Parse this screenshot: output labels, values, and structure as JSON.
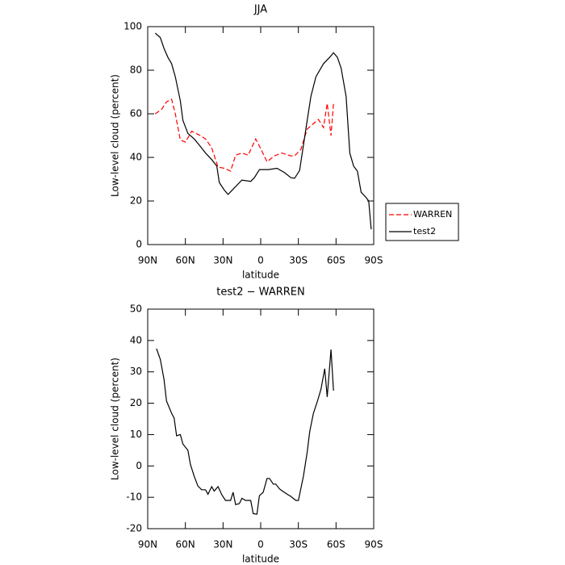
{
  "chart_data": [
    {
      "type": "line",
      "title": "JJA",
      "xlabel": "latitude",
      "ylabel": "Low-level cloud (percent)",
      "xlim": [
        90,
        -90
      ],
      "ylim": [
        0,
        100
      ],
      "xticks": [
        {
          "value": 90,
          "label": "90N"
        },
        {
          "value": 60,
          "label": "60N"
        },
        {
          "value": 30,
          "label": "30N"
        },
        0,
        {
          "value": -30,
          "label": "30S"
        },
        {
          "value": -60,
          "label": "60S"
        },
        {
          "value": -90,
          "label": "90S"
        }
      ],
      "yticks": [
        0,
        20,
        40,
        60,
        80,
        100
      ],
      "legend": "right",
      "series": [
        {
          "name": "WARREN",
          "color": "#ff0000",
          "dash": true,
          "x": [
            84,
            79,
            75,
            71,
            68,
            64,
            60,
            55,
            48,
            44,
            39,
            34,
            29,
            24,
            20,
            15,
            10,
            4,
            0,
            -5,
            -11,
            -17,
            -24,
            -27,
            -32,
            -37,
            -41,
            -46,
            -50,
            -53,
            -56,
            -58
          ],
          "values": [
            60,
            62,
            65.5,
            66.7,
            60,
            48,
            47,
            52,
            50,
            48.5,
            44.4,
            35.6,
            35,
            33.7,
            41,
            42,
            41,
            48.5,
            44,
            38,
            40.7,
            42,
            40.7,
            40.7,
            43.7,
            53,
            55,
            57.4,
            53.7,
            64.8,
            50,
            64.8
          ]
        },
        {
          "name": "test2",
          "color": "#000000",
          "dash": false,
          "x": [
            84,
            80,
            77,
            74,
            71,
            68,
            64,
            62,
            58,
            53,
            48,
            44,
            39,
            35,
            33,
            29,
            26,
            21,
            15,
            8,
            5,
            1,
            -6,
            -13,
            -19,
            -24,
            -27,
            -31,
            -34,
            -37,
            -40,
            -44,
            -50,
            -55,
            -58,
            -61,
            -64,
            -68,
            -71,
            -74,
            -77,
            -80,
            -84,
            -86,
            -88
          ],
          "values": [
            97,
            95,
            90,
            86,
            83,
            77,
            66,
            57,
            51,
            48.5,
            45,
            42,
            39,
            36,
            28.5,
            25,
            23,
            26,
            29.6,
            29,
            30.7,
            34.4,
            34.4,
            35,
            33,
            30.7,
            30.4,
            34,
            45.5,
            57,
            68,
            77,
            83,
            86,
            88,
            86,
            81,
            68,
            42,
            36,
            33.7,
            24,
            21.5,
            20,
            7
          ]
        }
      ]
    },
    {
      "type": "line",
      "title": "test2 − WARREN",
      "xlabel": "latitude",
      "ylabel": "Low-level cloud (percent)",
      "xlim": [
        90,
        -90
      ],
      "ylim": [
        -20,
        50
      ],
      "xticks": [
        {
          "value": 90,
          "label": "90N"
        },
        {
          "value": 60,
          "label": "60N"
        },
        {
          "value": 30,
          "label": "30N"
        },
        0,
        {
          "value": -30,
          "label": "30S"
        },
        {
          "value": -60,
          "label": "60S"
        },
        {
          "value": -90,
          "label": "90S"
        }
      ],
      "yticks": [
        -20,
        -10,
        0,
        10,
        20,
        30,
        40,
        50
      ],
      "color": "#000000",
      "x": [
        83,
        80,
        77,
        75,
        71,
        69,
        67,
        64,
        62,
        58,
        56,
        53,
        50,
        47,
        44,
        42,
        39,
        37,
        34,
        31,
        28,
        24,
        22,
        20,
        17,
        15,
        12,
        8,
        6,
        3,
        1,
        -2,
        -5,
        -7,
        -10,
        -12,
        -15,
        -17,
        -21,
        -24,
        -28,
        -30,
        -34,
        -37,
        -39,
        -42,
        -45,
        -48,
        -51,
        -53,
        -56,
        -58
      ],
      "values": [
        37.4,
        34,
        27.6,
        20.7,
        16.8,
        15.3,
        9.6,
        10,
        7,
        5,
        0.5,
        -3.3,
        -6.4,
        -7.6,
        -7.6,
        -9,
        -6.6,
        -8,
        -6.6,
        -9.2,
        -11,
        -11,
        -8.4,
        -12.3,
        -12,
        -10.3,
        -11,
        -11,
        -15.2,
        -15.4,
        -9.5,
        -8.4,
        -4,
        -4,
        -5.8,
        -5.8,
        -7.3,
        -7.9,
        -9,
        -9.7,
        -11,
        -11,
        -3.3,
        4.4,
        10.9,
        16.8,
        20.4,
        24.5,
        31,
        22,
        37.1,
        24
      ]
    }
  ]
}
